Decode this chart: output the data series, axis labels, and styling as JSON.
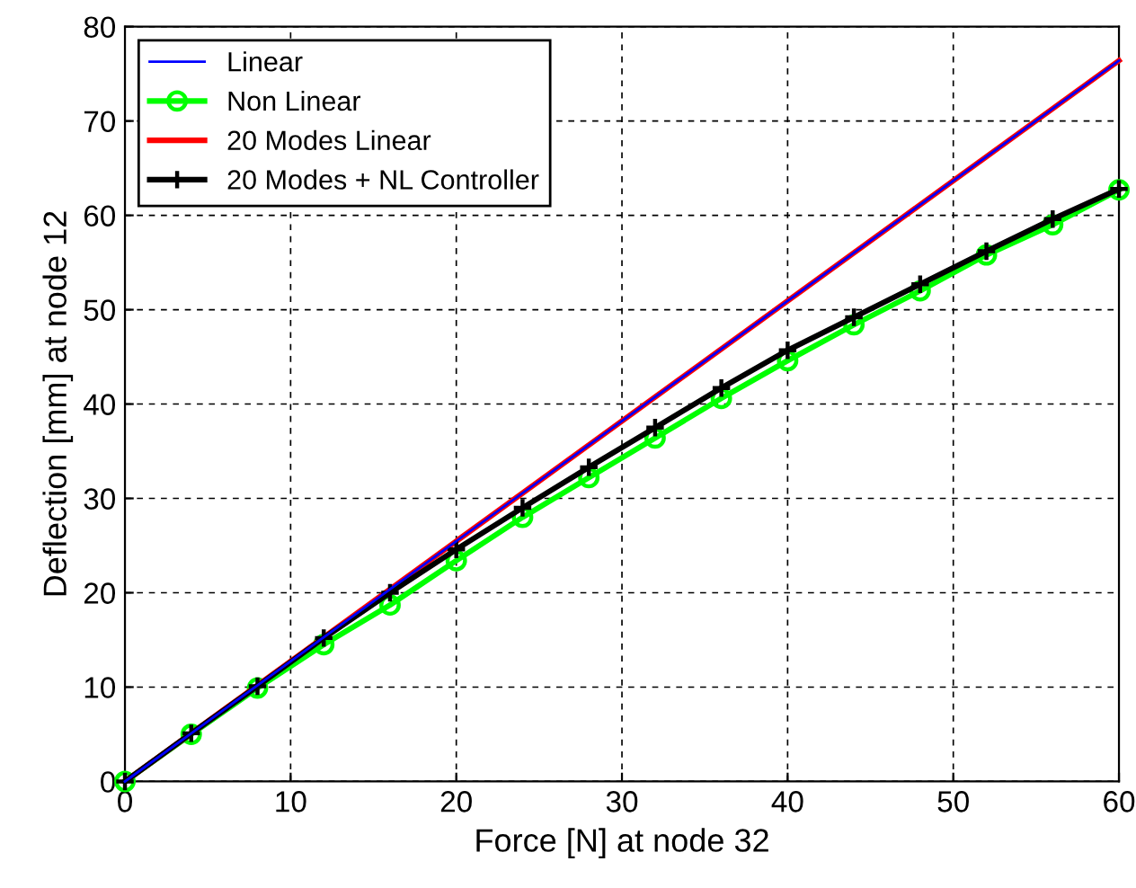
{
  "chart_data": {
    "type": "line",
    "xlabel": "Force [N] at node 32",
    "ylabel": "Deflection [mm] at node 12",
    "xlim": [
      0,
      60
    ],
    "ylim": [
      0,
      80
    ],
    "xticks": [
      0,
      10,
      20,
      30,
      40,
      50,
      60
    ],
    "yticks": [
      0,
      10,
      20,
      30,
      40,
      50,
      60,
      70,
      80
    ],
    "grid": true,
    "legend": "top left",
    "line_style": "solid",
    "series": [
      {
        "name": "Linear",
        "color": "#0000ff",
        "x": [
          0,
          60
        ],
        "values": [
          0,
          76.4
        ],
        "marker": "none"
      },
      {
        "name": "Non Linear",
        "color": "#00ff00",
        "x": [
          0,
          4,
          8,
          12,
          16,
          20,
          24,
          28,
          32,
          36,
          40,
          44,
          48,
          52,
          56,
          60
        ],
        "values": [
          0,
          5.0,
          9.9,
          14.5,
          18.7,
          23.4,
          28.0,
          32.2,
          36.4,
          40.6,
          44.6,
          48.4,
          52.0,
          55.8,
          59.0,
          62.7
        ],
        "marker": "circle"
      },
      {
        "name": "20 Modes Linear",
        "color": "#ff0000",
        "x": [
          0,
          60
        ],
        "values": [
          0,
          76.4
        ],
        "marker": "none"
      },
      {
        "name": "20 Modes + NL Controller",
        "color": "#000000",
        "x": [
          0,
          4,
          8,
          12,
          16,
          20,
          24,
          28,
          32,
          36,
          40,
          44,
          48,
          52,
          56,
          60
        ],
        "values": [
          0,
          5.1,
          10.1,
          15.2,
          20.0,
          24.6,
          29.0,
          33.3,
          37.5,
          41.7,
          45.7,
          49.2,
          52.7,
          56.2,
          59.6,
          62.8
        ],
        "marker": "cross"
      }
    ]
  }
}
